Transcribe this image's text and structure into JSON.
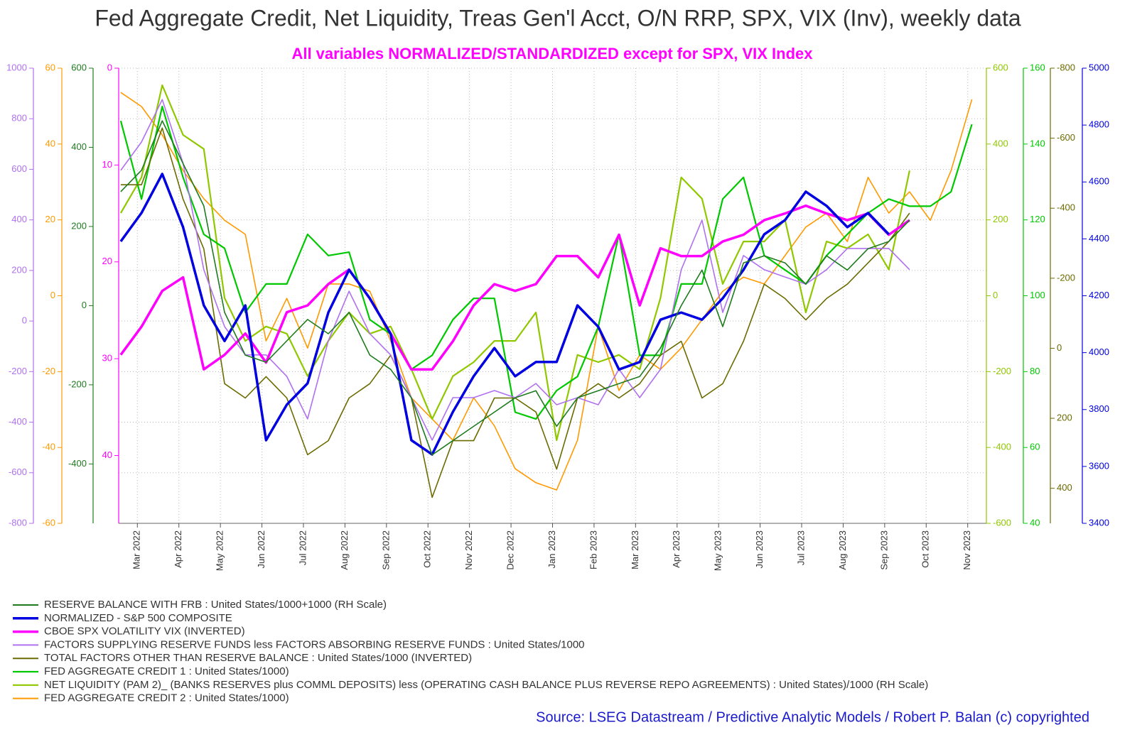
{
  "chart_data": {
    "type": "line",
    "title": "Fed Aggregate Credit, Net Liquidity, Treas Gen'l Acct, O/N RRP, SPX, VIX (Inv), weekly data",
    "subtitle": "All variables NORMALIZED/STANDARDIZED except for SPX, VIX Index",
    "source": "Source: LSEG Datastream / Predictive Analytic Models / Robert P. Balan (c) copyrighted",
    "grid": true,
    "xlim": [
      0.55,
      21.45
    ],
    "xticks": [
      {
        "value": 1,
        "label": "Mar 2022"
      },
      {
        "value": 2,
        "label": "Apr 2022"
      },
      {
        "value": 3,
        "label": "May 2022"
      },
      {
        "value": 4,
        "label": "Jun 2022"
      },
      {
        "value": 5,
        "label": "Jul 2022"
      },
      {
        "value": 6,
        "label": "Aug 2022"
      },
      {
        "value": 7,
        "label": "Sep 2022"
      },
      {
        "value": 8,
        "label": "Oct 2022"
      },
      {
        "value": 9,
        "label": "Nov 2022"
      },
      {
        "value": 10,
        "label": "Dec 2022"
      },
      {
        "value": 11,
        "label": "Jan 2023"
      },
      {
        "value": 12,
        "label": "Feb 2023"
      },
      {
        "value": 13,
        "label": "Mar 2023"
      },
      {
        "value": 14,
        "label": "Apr 2023"
      },
      {
        "value": 15,
        "label": "May 2023"
      },
      {
        "value": 16,
        "label": "Jun 2023"
      },
      {
        "value": 17,
        "label": "Jul 2023"
      },
      {
        "value": 18,
        "label": "Aug 2023"
      },
      {
        "value": 19,
        "label": "Sep 2023"
      },
      {
        "value": 20,
        "label": "Oct 2023"
      },
      {
        "value": 21,
        "label": "Nov 2023"
      }
    ],
    "x": [
      0.6,
      1.1,
      1.6,
      2.1,
      2.6,
      3.1,
      3.6,
      4.1,
      4.6,
      5.1,
      5.6,
      6.1,
      6.6,
      7.1,
      7.6,
      8.1,
      8.6,
      9.1,
      9.6,
      10.1,
      10.6,
      11.1,
      11.6,
      12.1,
      12.6,
      13.1,
      13.6,
      14.1,
      14.6,
      15.1,
      15.6,
      16.1,
      16.6,
      17.1,
      17.6,
      18.1,
      18.6,
      19.1,
      19.6,
      20.1,
      20.6,
      21.1
    ],
    "axes": [
      {
        "side": "left",
        "color": "#b070f0",
        "ylim": [
          -800,
          1000
        ],
        "yticks": [
          -800,
          -600,
          -400,
          -200,
          0,
          200,
          400,
          600,
          800,
          1000
        ]
      },
      {
        "side": "left",
        "color": "#ff9900",
        "ylim": [
          -60,
          60
        ],
        "yticks": [
          -60,
          -40,
          -20,
          0,
          20,
          40,
          60
        ]
      },
      {
        "side": "left",
        "color": "#1e7b1e",
        "ylim": [
          -550,
          600
        ],
        "yticks": [
          -400,
          -200,
          0,
          200,
          400,
          600
        ]
      },
      {
        "side": "left",
        "color": "#ff00ff",
        "ylim": [
          47,
          0
        ],
        "yticks": [
          0,
          10,
          20,
          30,
          40
        ]
      },
      {
        "side": "right",
        "color": "#90c800",
        "ylim": [
          -600,
          600
        ],
        "yticks": [
          -600,
          -400,
          -200,
          0,
          200,
          400,
          600
        ]
      },
      {
        "side": "right",
        "color": "#00c800",
        "ylim": [
          40,
          160
        ],
        "yticks": [
          40,
          60,
          80,
          100,
          120,
          140,
          160
        ]
      },
      {
        "side": "right",
        "color": "#6b6b00",
        "ylim": [
          500,
          -800
        ],
        "yticks": [
          -800,
          -600,
          -400,
          -200,
          0,
          200,
          400
        ]
      },
      {
        "side": "right",
        "color": "#0000e0",
        "ylim": [
          3400,
          5000
        ],
        "yticks": [
          3400,
          3600,
          3800,
          4000,
          4200,
          4400,
          4600,
          4800,
          5000
        ]
      }
    ],
    "series": [
      {
        "name": "RESERVE BALANCE WITH FRB : United States/1000+1000 (RH Scale)",
        "color": "#1e7b1e",
        "axis": 2,
        "line_width": 1.6,
        "values": [
          288,
          342,
          467,
          359,
          252,
          -17,
          -125,
          -143,
          -89,
          -35,
          -71,
          -17,
          -125,
          -161,
          -233,
          -377,
          -341,
          -305,
          -269,
          -233,
          -215,
          -305,
          -233,
          -215,
          -197,
          -179,
          -107,
          0,
          90,
          -53,
          108,
          126,
          108,
          54,
          126,
          90,
          144,
          162,
          216,
          null,
          null,
          null
        ]
      },
      {
        "name": "NORMALIZED - S&P 500 COMPOSITE",
        "color": "#0000e0",
        "axis": 7,
        "line_width": 3.5,
        "values": [
          4391,
          4491,
          4628,
          4441,
          4166,
          4041,
          4166,
          3692,
          3817,
          3892,
          4141,
          4291,
          4191,
          4066,
          3692,
          3642,
          3792,
          3917,
          4016,
          3917,
          3967,
          3967,
          4166,
          4091,
          3941,
          3967,
          4116,
          4141,
          4116,
          4191,
          4291,
          4416,
          4466,
          4566,
          4516,
          4441,
          4491,
          4416,
          null,
          null,
          null,
          null
        ]
      },
      {
        "name": "CBOE SPX VOLATILITY VIX (INVERTED)",
        "color": "#ff00ff",
        "axis": 3,
        "line_width": 3.5,
        "values": [
          29.6,
          26.7,
          23.0,
          21.6,
          31.1,
          29.6,
          27.4,
          30.4,
          25.2,
          24.5,
          22.3,
          20.8,
          23.8,
          27.4,
          31.1,
          31.1,
          28.2,
          24.5,
          22.3,
          23.0,
          22.3,
          19.4,
          19.4,
          21.6,
          17.2,
          24.5,
          18.6,
          19.4,
          19.4,
          17.9,
          17.2,
          15.7,
          15.0,
          14.2,
          15.0,
          15.7,
          15.0,
          17.2,
          15.7,
          null,
          null,
          null
        ]
      },
      {
        "name": "FACTORS SUPPLYING RESERVE FUNDS less FACTORS ABSORBING RESERVE FUNDS : United States/1000",
        "color": "#b070f0",
        "axis": 0,
        "line_width": 1.6,
        "values": [
          596,
          708,
          876,
          624,
          203,
          -22,
          -134,
          -134,
          -219,
          -387,
          -78,
          118,
          -50,
          -134,
          -303,
          -471,
          -303,
          -303,
          -275,
          -303,
          -247,
          -331,
          -303,
          -331,
          -191,
          -303,
          -191,
          203,
          399,
          34,
          259,
          203,
          174,
          146,
          203,
          287,
          287,
          287,
          203,
          null,
          null,
          null
        ]
      },
      {
        "name": "TOTAL FACTORS OTHER THAN RESERVE BALANCE : United States/1000 (INVERTED)",
        "color": "#6b6b00",
        "axis": 6,
        "line_width": 1.6,
        "values": [
          -467,
          -467,
          -629,
          -426,
          -284,
          101,
          142,
          81,
          142,
          304,
          264,
          142,
          101,
          20,
          142,
          426,
          264,
          264,
          142,
          142,
          182,
          345,
          142,
          101,
          142,
          101,
          20,
          -20,
          142,
          101,
          -20,
          -183,
          -142,
          -81,
          -142,
          -183,
          -244,
          -305,
          -386,
          null,
          null,
          null
        ]
      },
      {
        "name": "FED AGGREGATE CREDIT 1 : United States/1000)",
        "color": "#00c800",
        "axis": 5,
        "line_width": 2.2,
        "values": [
          146.1,
          125.5,
          149.9,
          131.2,
          116.2,
          112.5,
          95.6,
          103.1,
          103.1,
          116.2,
          110.6,
          111.5,
          93.7,
          89.9,
          80.6,
          84.3,
          93.7,
          99.3,
          99.3,
          69.3,
          67.5,
          75.0,
          78.7,
          91.8,
          116.2,
          84.3,
          84.3,
          103.1,
          103.1,
          125.5,
          131.2,
          110.6,
          106.8,
          103.1,
          110.6,
          116.2,
          121.8,
          125.5,
          123.6,
          123.6,
          127.4,
          145.2
        ]
      },
      {
        "name": "NET LIQUIDITY (PAM 2)_ (BANKS RESERVES plus COMML DEPOSITS) less (OPERATING CASH BALANCE PLUS REVERSE REPO AGREEMENTS) : United States)/1000 (RH Scale)",
        "color": "#90c800",
        "axis": 4,
        "line_width": 2.2,
        "values": [
          218,
          312,
          555,
          424,
          387,
          -6,
          -119,
          -81,
          -100,
          -212,
          -119,
          -44,
          -100,
          -81,
          -194,
          -325,
          -212,
          -175,
          -119,
          -119,
          -44,
          -381,
          -156,
          -175,
          -156,
          -194,
          -6,
          312,
          256,
          31,
          143,
          143,
          200,
          -44,
          143,
          125,
          162,
          69,
          330,
          null,
          null,
          null
        ]
      },
      {
        "name": "FED AGGREGATE CREDIT 2 : United States/1000)",
        "color": "#ff9900",
        "axis": 1,
        "line_width": 1.6,
        "values": [
          53.6,
          49.9,
          42.4,
          33.0,
          25.6,
          19.9,
          16.2,
          -11.9,
          -0.7,
          -13.8,
          3.1,
          3.1,
          1.2,
          -11.9,
          -26.9,
          -32.5,
          -38.1,
          -26.9,
          -34.3,
          -45.6,
          -49.3,
          -51.2,
          -38.1,
          -8.1,
          -25.0,
          -15.6,
          -19.4,
          -13.8,
          -6.3,
          1.2,
          4.9,
          3.1,
          10.6,
          18.1,
          21.8,
          14.3,
          31.2,
          21.8,
          27.4,
          19.9,
          33.0,
          51.8
        ]
      }
    ]
  }
}
